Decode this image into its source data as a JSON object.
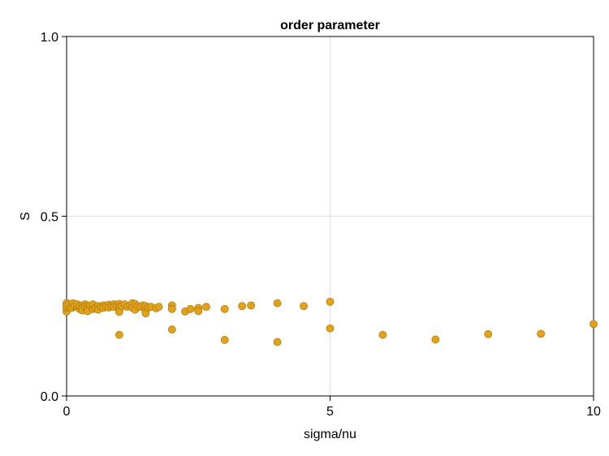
{
  "chart_data": {
    "type": "scatter",
    "title": "order parameter",
    "xlabel": "sigma/nu",
    "ylabel": "S",
    "xlim": [
      0,
      10
    ],
    "ylim": [
      0.0,
      1.0
    ],
    "xticks": [
      0,
      5,
      10
    ],
    "xtick_labels": [
      "0",
      "5",
      "10"
    ],
    "yticks": [
      0.0,
      0.5,
      1.0
    ],
    "ytick_labels": [
      "0.0",
      "0.5",
      "1.0"
    ],
    "grid": true,
    "marker_color": "#e3a21a",
    "marker_edge_color": "#b07e0f",
    "series": [
      {
        "points": [
          [
            0.0,
            0.235
          ],
          [
            0.0,
            0.245
          ],
          [
            0.0,
            0.252
          ],
          [
            0.0,
            0.258
          ],
          [
            0.0,
            0.25
          ],
          [
            0.05,
            0.248
          ],
          [
            0.05,
            0.255
          ],
          [
            0.1,
            0.252
          ],
          [
            0.1,
            0.245
          ],
          [
            0.12,
            0.258
          ],
          [
            0.15,
            0.25
          ],
          [
            0.2,
            0.248
          ],
          [
            0.2,
            0.255
          ],
          [
            0.25,
            0.242
          ],
          [
            0.25,
            0.25
          ],
          [
            0.3,
            0.252
          ],
          [
            0.3,
            0.245
          ],
          [
            0.3,
            0.238
          ],
          [
            0.35,
            0.255
          ],
          [
            0.35,
            0.248
          ],
          [
            0.4,
            0.25
          ],
          [
            0.4,
            0.243
          ],
          [
            0.4,
            0.236
          ],
          [
            0.45,
            0.252
          ],
          [
            0.5,
            0.248
          ],
          [
            0.5,
            0.242
          ],
          [
            0.5,
            0.255
          ],
          [
            0.55,
            0.245
          ],
          [
            0.6,
            0.25
          ],
          [
            0.6,
            0.24
          ],
          [
            0.65,
            0.248
          ],
          [
            0.7,
            0.252
          ],
          [
            0.7,
            0.245
          ],
          [
            0.75,
            0.25
          ],
          [
            0.8,
            0.254
          ],
          [
            0.8,
            0.246
          ],
          [
            0.85,
            0.25
          ],
          [
            0.9,
            0.255
          ],
          [
            0.9,
            0.248
          ],
          [
            0.95,
            0.252
          ],
          [
            1.0,
            0.256
          ],
          [
            1.0,
            0.248
          ],
          [
            1.0,
            0.24
          ],
          [
            1.0,
            0.234
          ],
          [
            1.0,
            0.17
          ],
          [
            1.05,
            0.25
          ],
          [
            1.1,
            0.255
          ],
          [
            1.15,
            0.248
          ],
          [
            1.2,
            0.252
          ],
          [
            1.25,
            0.258
          ],
          [
            1.25,
            0.245
          ],
          [
            1.3,
            0.256
          ],
          [
            1.3,
            0.24
          ],
          [
            1.35,
            0.25
          ],
          [
            1.4,
            0.248
          ],
          [
            1.45,
            0.252
          ],
          [
            1.5,
            0.25
          ],
          [
            1.5,
            0.238
          ],
          [
            1.5,
            0.23
          ],
          [
            1.55,
            0.246
          ],
          [
            1.6,
            0.248
          ],
          [
            1.7,
            0.244
          ],
          [
            1.75,
            0.248
          ],
          [
            2.0,
            0.252
          ],
          [
            2.0,
            0.242
          ],
          [
            2.0,
            0.185
          ],
          [
            2.25,
            0.235
          ],
          [
            2.35,
            0.242
          ],
          [
            2.5,
            0.245
          ],
          [
            2.5,
            0.236
          ],
          [
            2.65,
            0.248
          ],
          [
            3.0,
            0.242
          ],
          [
            3.0,
            0.156
          ],
          [
            3.33,
            0.25
          ],
          [
            3.5,
            0.252
          ],
          [
            4.0,
            0.258
          ],
          [
            4.0,
            0.15
          ],
          [
            4.5,
            0.25
          ],
          [
            5.0,
            0.262
          ],
          [
            5.0,
            0.188
          ],
          [
            6.0,
            0.17
          ],
          [
            7.0,
            0.157
          ],
          [
            8.0,
            0.172
          ],
          [
            9.0,
            0.173
          ],
          [
            10.0,
            0.2
          ]
        ]
      }
    ]
  }
}
